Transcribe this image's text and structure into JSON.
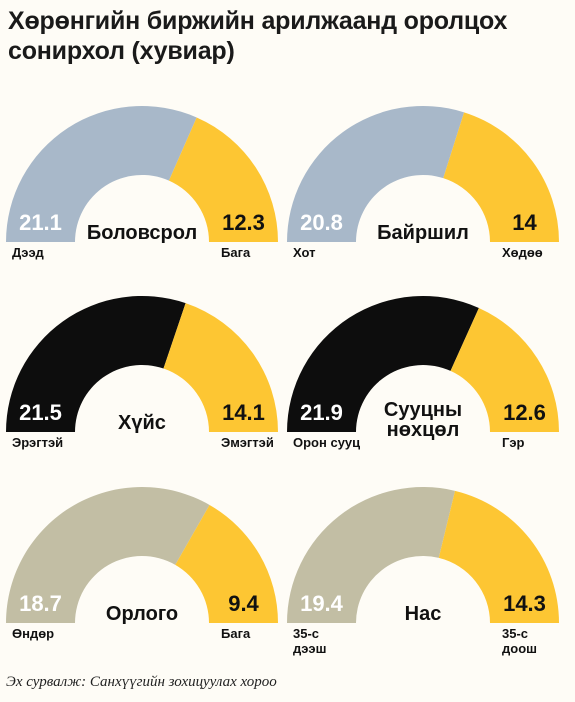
{
  "title_lines": [
    "Хөрөнгийн биржийн арилжаанд оролцох",
    "сонирхол  (хувиар)"
  ],
  "source": "Эх сурвалж: Санхүүгийн зохицуулах хороо",
  "colors": {
    "yellow": "#fdc633",
    "blue": "#a8b8c9",
    "black": "#0d0d0d",
    "beige": "#c2bea4",
    "white": "#ffffff",
    "dark_text": "#111111"
  },
  "chart_data": [
    {
      "type": "pie",
      "center_label": [
        "Боловсрол"
      ],
      "slices": [
        {
          "label": [
            "Дээд"
          ],
          "value": 21.1,
          "display": "21.1",
          "color": "blue"
        },
        {
          "label": [
            "Бага"
          ],
          "value": 12.3,
          "display": "12.3",
          "color": "yellow"
        }
      ]
    },
    {
      "type": "pie",
      "center_label": [
        "Байршил"
      ],
      "slices": [
        {
          "label": [
            "Хот"
          ],
          "value": 20.8,
          "display": "20.8",
          "color": "blue"
        },
        {
          "label": [
            "Хөдөө"
          ],
          "value": 14,
          "display": "14",
          "color": "yellow"
        }
      ]
    },
    {
      "type": "pie",
      "center_label": [
        "Хүйс"
      ],
      "slices": [
        {
          "label": [
            "Эрэгтэй"
          ],
          "value": 21.5,
          "display": "21.5",
          "color": "black"
        },
        {
          "label": [
            "Эмэгтэй"
          ],
          "value": 14.1,
          "display": "14.1",
          "color": "yellow"
        }
      ]
    },
    {
      "type": "pie",
      "center_label": [
        "Сууцны",
        "нөхцөл"
      ],
      "slices": [
        {
          "label": [
            "Орон сууц"
          ],
          "value": 21.9,
          "display": "21.9",
          "color": "black"
        },
        {
          "label": [
            "Гэр"
          ],
          "value": 12.6,
          "display": "12.6",
          "color": "yellow"
        }
      ]
    },
    {
      "type": "pie",
      "center_label": [
        "Орлого"
      ],
      "slices": [
        {
          "label": [
            "Өндөр"
          ],
          "value": 18.7,
          "display": "18.7",
          "color": "beige"
        },
        {
          "label": [
            "Бага"
          ],
          "value": 9.4,
          "display": "9.4",
          "color": "yellow"
        }
      ]
    },
    {
      "type": "pie",
      "center_label": [
        "Нас"
      ],
      "slices": [
        {
          "label": [
            "35-с",
            "дээш"
          ],
          "value": 19.4,
          "display": "19.4",
          "color": "beige"
        },
        {
          "label": [
            "35-с",
            "доош"
          ],
          "value": 14.3,
          "display": "14.3",
          "color": "yellow"
        }
      ]
    }
  ]
}
